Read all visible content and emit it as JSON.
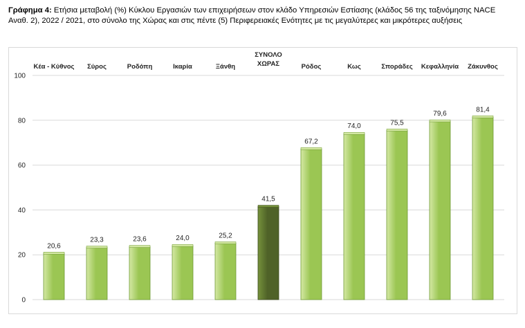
{
  "caption": {
    "label": "Γράφημα 4:",
    "text": "Ετήσια μεταβολή (%) Κύκλου Εργασιών των επιχειρήσεων στον κλάδο Υπηρεσιών Εστίασης (κλάδος 56  της ταξινόμησης NACE Αναθ. 2), 2022 / 2021, στο σύνολο της Χώρας και στις πέντε (5) Περιφερειακές Ενότητες με τις μεγαλύτερες και μικρότερες αυξήσεις"
  },
  "chart_data": {
    "type": "bar",
    "title": "",
    "xlabel": "",
    "ylabel": "",
    "ylim": [
      0,
      100
    ],
    "yticks": [
      "0",
      "20",
      "40",
      "60",
      "80",
      "100"
    ],
    "grid": true,
    "category_axis": "top",
    "categories": [
      [
        "Κέα - Κύθνος"
      ],
      [
        "Σύρος"
      ],
      [
        "Ροδόπη"
      ],
      [
        "Ικαρία"
      ],
      [
        "Ξάνθη"
      ],
      [
        "ΣΥΝΟΛΟ",
        "ΧΩΡΑΣ"
      ],
      [
        "Ρόδος"
      ],
      [
        "Κως"
      ],
      [
        "Σποράδες"
      ],
      [
        "Κεφαλληνία"
      ],
      [
        "Ζάκυνθος"
      ]
    ],
    "values": [
      20.6,
      23.3,
      23.6,
      24.0,
      25.2,
      41.5,
      67.2,
      74.0,
      75.5,
      79.6,
      81.4
    ],
    "value_labels": [
      "20,6",
      "23,3",
      "23,6",
      "24,0",
      "25,2",
      "41,5",
      "67,2",
      "74,0",
      "75,5",
      "79,6",
      "81,4"
    ],
    "highlight_index": 5,
    "colors": {
      "bar_light": "#d4e8a4",
      "bar_main": "#9bc653",
      "bar_edge": "#6f9a35",
      "highlight_light": "#76923c",
      "highlight_main": "#4f6228",
      "highlight_edge": "#3b4a1d",
      "grid": "#d9d9d9"
    }
  }
}
